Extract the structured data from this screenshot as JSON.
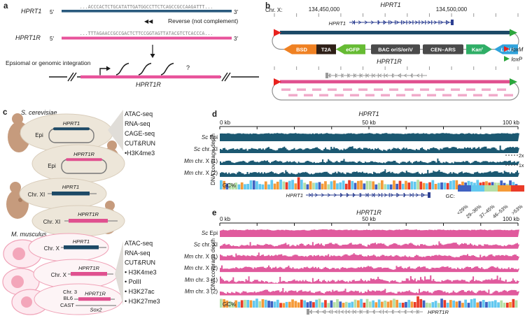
{
  "colors": {
    "coverage_blue": "#1b5871",
    "coverage_pink": "#e05a9d",
    "hprt1_bar_blue": "#1c4966",
    "hprt1r_bar_pink": "#e0508f",
    "gene_model_blue": "#2c3f92",
    "gene_model_gray": "#999999",
    "loxM_red": "#e8211d",
    "loxP_green": "#2ba63c",
    "gc_palette": [
      "#4061c1",
      "#62c8ef",
      "#b5dfa5",
      "#f59a38",
      "#ea3b28"
    ],
    "yeast_cell": "#c69b7d",
    "mouse_cell_outline": "#f0a3b8"
  },
  "panel_a": {
    "label": "a",
    "gene1_label": "HPRT1",
    "gene2_label": "HPRT1R",
    "five_prime": "5′",
    "three_prime": "3′",
    "seq1": "...ACCCACTCTGCATATTGATGGCCTTCTCAGCCGCCAAGATTT...",
    "seq2": "...TTTAGAACCGCCGACTCTTCCGGTAGTTATACGTCTCACCCA...",
    "reverse_icon": "◀◀",
    "reverse_label": "Reverse (not complement)",
    "integration_label": "Epsiomal or genomic integration",
    "question_mark": "?",
    "diagram_gene_label": "HPRT1R"
  },
  "panel_b": {
    "label": "b",
    "chr_label": "Chr. X:",
    "coord_left": "134,450,000",
    "coord_right": "134,500,000",
    "top_title": "HPRT1",
    "top_gene_model_label": "HPRT1",
    "bottom_title": "HPRT1R",
    "construct": {
      "bsd": "BSD",
      "t2a": "T2A",
      "egfp": "eGFP",
      "bac": "BAC oriS/oriV",
      "cen": "CEN–ARS",
      "kan": "Kan",
      "kan_sup": "r",
      "leu2": "LEU2"
    },
    "legend": {
      "loxM": "loxM",
      "loxP": "loxP"
    }
  },
  "panel_c": {
    "label": "c",
    "yeast": {
      "title": "S. cerevisiae",
      "epi_label": "Epi",
      "chr_label": "Chr. XI",
      "gene1": "HPRT1",
      "gene2": "HPRT1R",
      "assays": [
        "ATAC-seq",
        "RNA-seq",
        "CAGE-seq",
        "CUT&RUN",
        "•H3K4me3"
      ]
    },
    "mouse": {
      "title": "M. musculus",
      "chr_x": "Chr. X",
      "chr3": "Chr. 3",
      "bl6": "BL6",
      "cast": "CAST",
      "sox2": "Sox2",
      "gene1": "HPRT1",
      "gene2": "HPRT1R",
      "assays": [
        "ATAC-seq",
        "RNA-seq",
        "CUT&RUN",
        "• H3K4me3",
        "• PolII",
        "• H3K27ac",
        "• H3K27me3"
      ]
    }
  },
  "panel_d": {
    "label": "d",
    "title": "HPRT1",
    "axis": [
      "0 kb",
      "50 kb",
      "100 kb"
    ],
    "y_label": "DNA coverage depth",
    "gc_label": "GC%",
    "scale_2x": "2x",
    "scale_1x": "1x",
    "gene_model_label": "HPRT1",
    "gc_legend": {
      "label": "GC:",
      "bins": [
        {
          "label": "<29%",
          "color": "#4061c1"
        },
        {
          "label": "29–36%",
          "color": "#62c8ef"
        },
        {
          "label": "37–45%",
          "color": "#b5dfa5"
        },
        {
          "label": "46–53%",
          "color": "#f59a38"
        },
        {
          "label": ">53%",
          "color": "#ea3b28"
        }
      ]
    }
  },
  "panel_e": {
    "label": "e",
    "title": "HPRT1R",
    "axis": [
      "0 kb",
      "50 kb",
      "100 kb"
    ],
    "y_label": "DNA coverage depth",
    "gc_label": "GC%",
    "gene_model_label": "HPRT1R"
  },
  "chart_data": [
    {
      "type": "area",
      "title": "HPRT1",
      "xlabel": "kb",
      "x_range_kb": [
        0,
        100
      ],
      "x_ticks": [
        "0 kb",
        "50 kb",
        "100 kb"
      ],
      "ylabel": "DNA coverage depth",
      "scale_marks": [
        "2x",
        "1x"
      ],
      "series": [
        {
          "name": "Sc Epi",
          "base": 0.78,
          "amp": 0.1,
          "spike_p": 0.0,
          "spike_amp": 0.0,
          "seed": 11
        },
        {
          "name": "Sc chr. XI",
          "base": 0.45,
          "amp": 0.3,
          "spike_p": 0.05,
          "spike_amp": 0.35,
          "seed": 22
        },
        {
          "name": "Mm chr. X (1)",
          "base": 0.3,
          "amp": 0.24,
          "spike_p": 0.04,
          "spike_amp": 0.3,
          "seed": 33
        },
        {
          "name": "Mm chr. X (2)",
          "base": 0.4,
          "amp": 0.26,
          "spike_p": 0.05,
          "spike_amp": 0.3,
          "seed": 44
        }
      ],
      "gc_track": {
        "label": "GC%",
        "bins": [
          "<29%",
          "29–36%",
          "37–45%",
          "46–53%",
          ">53%"
        ],
        "spike_index": 26,
        "seed": 55
      }
    },
    {
      "type": "area",
      "title": "HPRT1R",
      "xlabel": "kb",
      "x_range_kb": [
        0,
        100
      ],
      "x_ticks": [
        "0 kb",
        "50 kb",
        "100 kb"
      ],
      "ylabel": "DNA coverage depth",
      "series": [
        {
          "name": "Sc Epi",
          "base": 0.78,
          "amp": 0.1,
          "spike_p": 0.0,
          "spike_amp": 0.0,
          "seed": 66
        },
        {
          "name": "Sc chr. XI",
          "base": 0.45,
          "amp": 0.3,
          "spike_p": 0.05,
          "spike_amp": 0.35,
          "seed": 77
        },
        {
          "name": "Mm chr. X (1)",
          "base": 0.5,
          "amp": 0.25,
          "spike_p": 0.03,
          "spike_amp": 0.25,
          "seed": 88
        },
        {
          "name": "Mm chr. X (2)",
          "base": 0.45,
          "amp": 0.28,
          "spike_p": 0.04,
          "spike_amp": 0.28,
          "seed": 99
        },
        {
          "name": "Mm chr. 3 (1)",
          "base": 0.3,
          "amp": 0.3,
          "spike_p": 0.12,
          "spike_amp": 0.5,
          "seed": 111
        },
        {
          "name": "Mm chr. 3 (2)",
          "base": 0.38,
          "amp": 0.3,
          "spike_p": 0.08,
          "spike_amp": 0.42,
          "seed": 122
        }
      ],
      "gc_track": {
        "label": "GC%",
        "bins": [
          "<29%",
          "29–36%",
          "37–45%",
          "46–53%",
          ">53%"
        ],
        "spike_index": 66,
        "seed": 133
      }
    }
  ]
}
